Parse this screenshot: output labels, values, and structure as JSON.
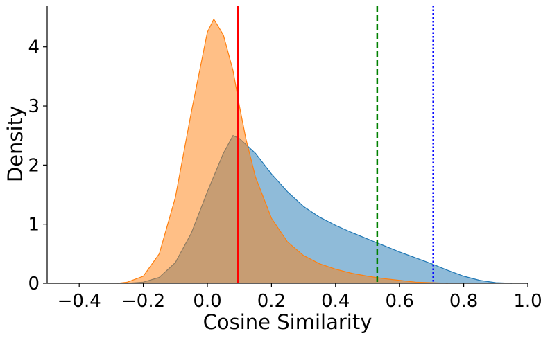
{
  "chart_data": {
    "type": "area",
    "title": "",
    "xlabel": "Cosine Similarity",
    "ylabel": "Density",
    "xlim": [
      -0.5,
      1.0
    ],
    "ylim": [
      0,
      4.7
    ],
    "grid": false,
    "x_ticks": [
      {
        "value": -0.4,
        "label": "−0.4"
      },
      {
        "value": -0.2,
        "label": "−0.2"
      },
      {
        "value": 0.0,
        "label": "0.0"
      },
      {
        "value": 0.2,
        "label": "0.2"
      },
      {
        "value": 0.4,
        "label": "0.4"
      },
      {
        "value": 0.6,
        "label": "0.6"
      },
      {
        "value": 0.8,
        "label": "0.8"
      },
      {
        "value": 1.0,
        "label": "1.0"
      }
    ],
    "y_ticks": [
      {
        "value": 0,
        "label": "0"
      },
      {
        "value": 1,
        "label": "1"
      },
      {
        "value": 2,
        "label": "2"
      },
      {
        "value": 3,
        "label": "3"
      },
      {
        "value": 4,
        "label": "4"
      }
    ],
    "series": [
      {
        "color": "#1f77b4",
        "fill_opacity": 0.5,
        "x": [
          -0.25,
          -0.2,
          -0.15,
          -0.1,
          -0.05,
          0.0,
          0.05,
          0.08,
          0.1,
          0.15,
          0.2,
          0.25,
          0.3,
          0.35,
          0.4,
          0.45,
          0.5,
          0.55,
          0.6,
          0.65,
          0.7,
          0.75,
          0.8,
          0.85,
          0.9,
          0.95
        ],
        "y": [
          0.0,
          0.02,
          0.1,
          0.35,
          0.85,
          1.55,
          2.2,
          2.5,
          2.45,
          2.2,
          1.85,
          1.55,
          1.3,
          1.12,
          0.98,
          0.86,
          0.75,
          0.64,
          0.53,
          0.43,
          0.33,
          0.22,
          0.12,
          0.05,
          0.01,
          0.0
        ]
      },
      {
        "color": "#ff7f0e",
        "fill_opacity": 0.5,
        "x": [
          -0.28,
          -0.25,
          -0.2,
          -0.15,
          -0.1,
          -0.05,
          0.0,
          0.02,
          0.05,
          0.08,
          0.1,
          0.12,
          0.15,
          0.2,
          0.25,
          0.3,
          0.35,
          0.4,
          0.45,
          0.5,
          0.55,
          0.6,
          0.65,
          0.7,
          0.75
        ],
        "y": [
          0.0,
          0.02,
          0.12,
          0.5,
          1.45,
          2.9,
          4.25,
          4.47,
          4.2,
          3.6,
          3.0,
          2.45,
          1.8,
          1.1,
          0.7,
          0.47,
          0.33,
          0.24,
          0.17,
          0.12,
          0.08,
          0.05,
          0.02,
          0.01,
          0.0
        ]
      }
    ],
    "vlines": [
      {
        "x": 0.095,
        "color": "#ff0000",
        "style": "solid"
      },
      {
        "x": 0.53,
        "color": "#008000",
        "style": "dashed"
      },
      {
        "x": 0.705,
        "color": "#0000ff",
        "style": "dotted"
      }
    ]
  }
}
